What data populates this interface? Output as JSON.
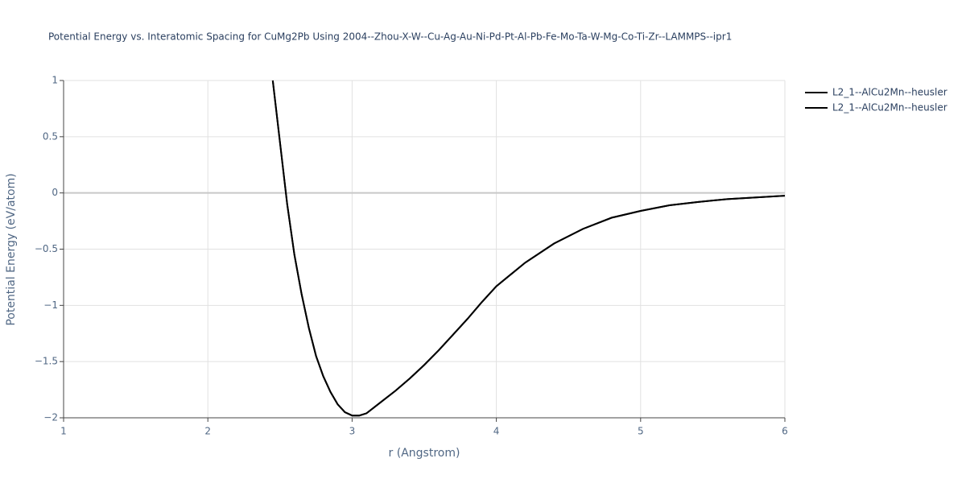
{
  "chart_data": {
    "type": "line",
    "title": "Potential Energy vs. Interatomic Spacing for CuMg2Pb Using 2004--Zhou-X-W--Cu-Ag-Au-Ni-Pd-Pt-Al-Pb-Fe-Mo-Ta-W-Mg-Co-Ti-Zr--LAMMPS--ipr1",
    "x_label": "r (Angstrom)",
    "y_label": "Potential Energy (eV/atom)",
    "x": [
      2.45,
      2.5,
      2.55,
      2.6,
      2.65,
      2.7,
      2.75,
      2.8,
      2.85,
      2.9,
      2.95,
      3.0,
      3.05,
      3.1,
      3.2,
      3.3,
      3.4,
      3.5,
      3.6,
      3.7,
      3.8,
      3.9,
      4.0,
      4.2,
      4.4,
      4.6,
      4.8,
      5.0,
      5.2,
      5.4,
      5.6,
      5.8,
      6.0
    ],
    "series": [
      {
        "name": "L2_1--AlCu2Mn--heusler",
        "color": "#000000",
        "values": [
          1.0,
          0.45,
          -0.1,
          -0.55,
          -0.9,
          -1.2,
          -1.45,
          -1.63,
          -1.77,
          -1.88,
          -1.95,
          -1.98,
          -1.98,
          -1.96,
          -1.86,
          -1.76,
          -1.65,
          -1.53,
          -1.4,
          -1.26,
          -1.12,
          -0.97,
          -0.83,
          -0.62,
          -0.45,
          -0.32,
          -0.22,
          -0.16,
          -0.11,
          -0.08,
          -0.055,
          -0.04,
          -0.025
        ]
      },
      {
        "name": "L2_1--AlCu2Mn--heusler",
        "color": "#000000",
        "values": [
          1.0,
          0.45,
          -0.1,
          -0.55,
          -0.9,
          -1.2,
          -1.45,
          -1.63,
          -1.77,
          -1.88,
          -1.95,
          -1.98,
          -1.98,
          -1.96,
          -1.86,
          -1.76,
          -1.65,
          -1.53,
          -1.4,
          -1.26,
          -1.12,
          -0.97,
          -0.83,
          -0.62,
          -0.45,
          -0.32,
          -0.22,
          -0.16,
          -0.11,
          -0.08,
          -0.055,
          -0.04,
          -0.025
        ]
      }
    ],
    "xlim": [
      1,
      6
    ],
    "ylim": [
      -2,
      1
    ],
    "xticks": [
      1,
      2,
      3,
      4,
      5,
      6
    ],
    "yticks": [
      {
        "value": -2,
        "label": "−2"
      },
      {
        "value": -1.5,
        "label": "−1.5"
      },
      {
        "value": -1,
        "label": "−1"
      },
      {
        "value": -0.5,
        "label": "−0.5"
      },
      0,
      0.5,
      1
    ],
    "grid": true,
    "legend": "top-right"
  }
}
